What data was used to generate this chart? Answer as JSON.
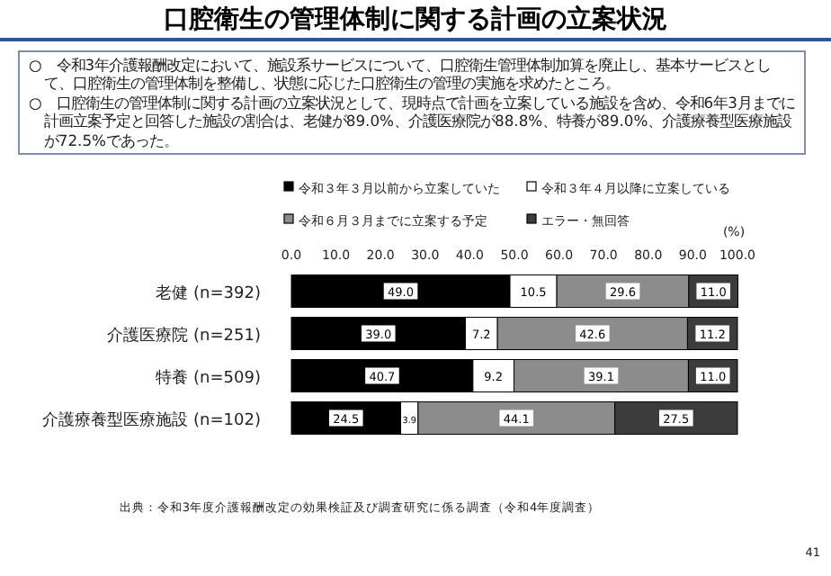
{
  "chart_data": {
    "type": "bar",
    "orientation": "horizontal",
    "stacked": true,
    "title": "口腔衛生の管理体制に関する計画の立案状況",
    "annotations": [
      "○　令和3年介護報酬改定において、施設系サービスについて、口腔衛生管理体制加算を廃止し、基本サービスとして、口腔衛生の管理体制を整備し、状態に応じた口腔衛生の管理の実施を求めたところ。",
      "○　口腔衛生の管理体制に関する計画の立案状況として、現時点で計画を立案している施設を含め、令和6年3月までに計画立案予定と回答した施設の割合は、老健が89.0%、介護医療院が88.8%、特養が89.0%、介護療養型医療施設が72.5%であった。",
      "出典：令和3年度介護報酬改定の効果検証及び調査研究に係る調査（令和4年度調査）",
      "41"
    ],
    "xlabel": "(%)",
    "categories": [
      "老健 (n=392)",
      "介護医療院 (n=251)",
      "特養 (n=509)",
      "介護療養型医療施設 (n=102)"
    ],
    "series": [
      {
        "name": "令和３年３月以前から立案していた",
        "color": "#000000",
        "values": [
          49.0,
          39.0,
          40.7,
          24.5
        ],
        "value_labels": [
          "49.0",
          "39.0",
          "40.7",
          "24.5"
        ]
      },
      {
        "name": "令和３年４月以降に立案している",
        "color": "#ffffff",
        "values": [
          10.5,
          7.2,
          9.2,
          3.9
        ],
        "value_labels": [
          "10.5",
          "7.2",
          "9.2",
          "3.9"
        ]
      },
      {
        "name": "令和６月３月までに立案する予定",
        "color": "#8c8c8c",
        "values": [
          29.6,
          42.6,
          39.1,
          44.1
        ],
        "value_labels": [
          "29.6",
          "42.6",
          "39.1",
          "44.1"
        ]
      },
      {
        "name": "エラー・無回答",
        "color": "#3c3c3c",
        "values": [
          11.0,
          11.2,
          11.0,
          27.5
        ],
        "value_labels": [
          "11.0",
          "11.2",
          "11.0",
          "27.5"
        ]
      }
    ],
    "xlim": [
      0,
      100
    ],
    "xticks": [
      {
        "value": 0,
        "label": "0.0"
      },
      {
        "value": 10,
        "label": "10.0"
      },
      {
        "value": 20,
        "label": "20.0"
      },
      {
        "value": 30,
        "label": "30.0"
      },
      {
        "value": 40,
        "label": "40.0"
      },
      {
        "value": 50,
        "label": "50.0"
      },
      {
        "value": 60,
        "label": "60.0"
      },
      {
        "value": 70,
        "label": "70.0"
      },
      {
        "value": 80,
        "label": "80.0"
      },
      {
        "value": 90,
        "label": "90.0"
      },
      {
        "value": 100,
        "label": "100.0"
      }
    ],
    "legend": "top",
    "grid": false
  }
}
